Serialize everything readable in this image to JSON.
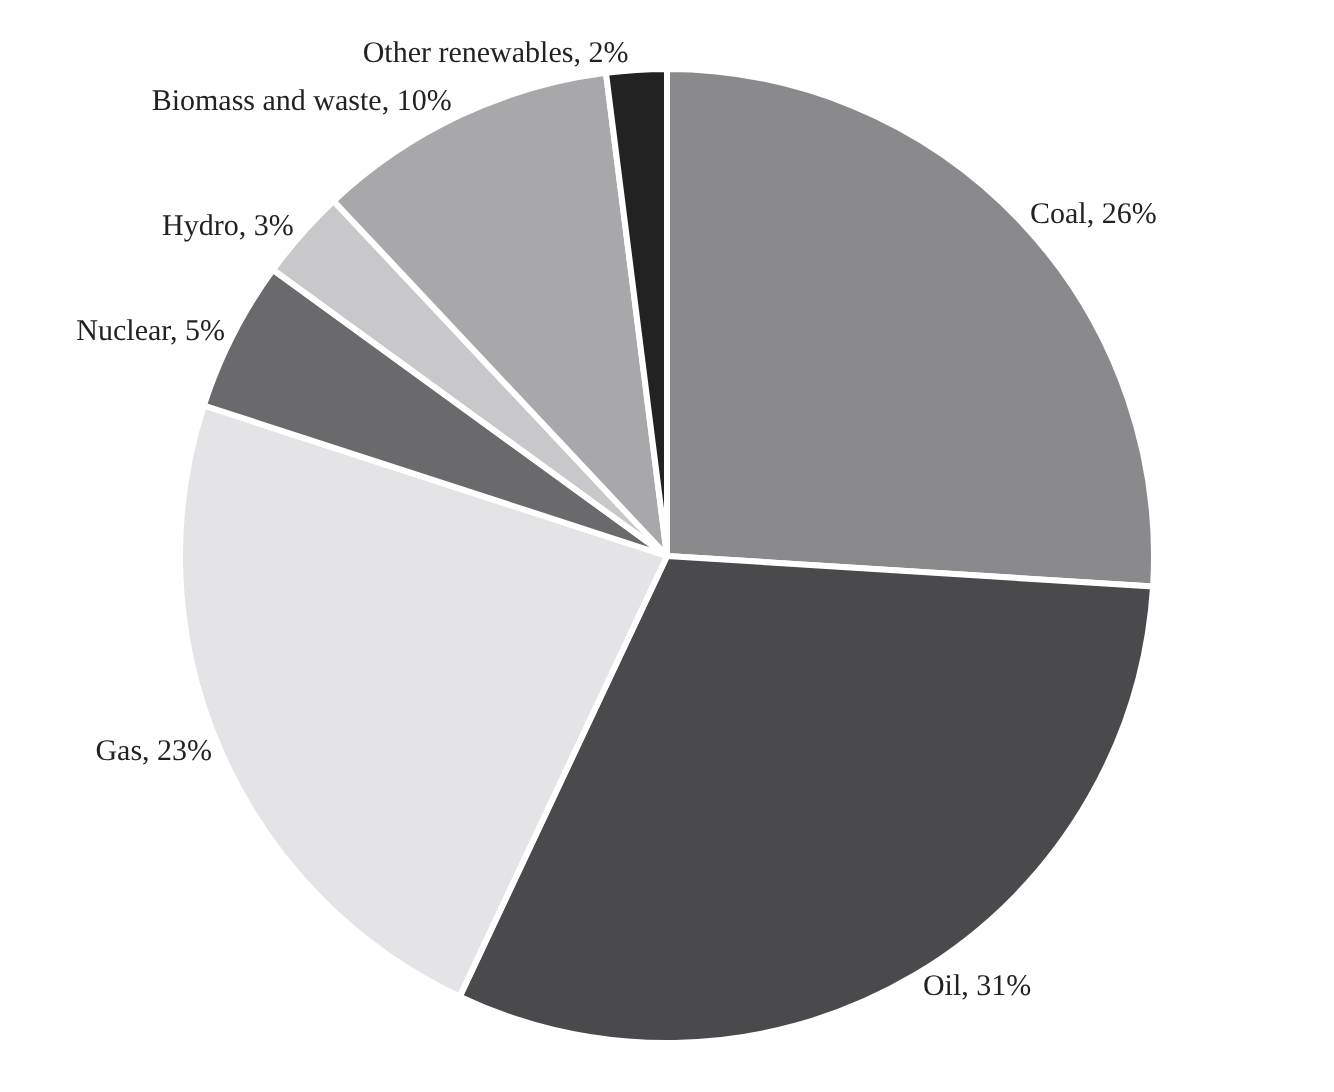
{
  "chart_data": {
    "type": "pie",
    "categories": [
      "Coal",
      "Oil",
      "Gas",
      "Nuclear",
      "Hydro",
      "Biomass and waste",
      "Other renewables"
    ],
    "values": [
      26,
      31,
      23,
      5,
      3,
      10,
      2
    ],
    "colors": [
      "#8a8a8c",
      "#4a4a4c",
      "#e4e4e6",
      "#6a6a6c",
      "#c8c8ca",
      "#a8a8aa",
      "#222222"
    ],
    "value_labels": [
      "26%",
      "31%",
      "23%",
      "5%",
      "3%",
      "10%",
      "2%"
    ],
    "legend": false
  }
}
